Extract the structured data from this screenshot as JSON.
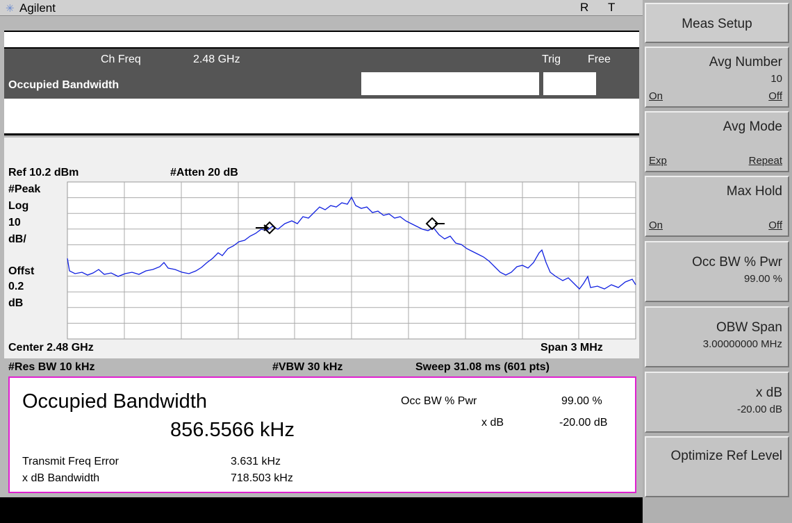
{
  "header": {
    "logo": "Agilent",
    "status": [
      "R",
      "T"
    ]
  },
  "measurement_bar": {
    "ch_freq_label": "Ch Freq",
    "ch_freq_value": "2.48 GHz",
    "trig_label": "Trig",
    "trig_value": "Free",
    "title": "Occupied Bandwidth"
  },
  "graph": {
    "ref": "Ref 10.2 dBm",
    "atten": "#Atten 20 dB",
    "scale_labels": [
      "#Peak",
      "Log",
      "10",
      "dB/",
      "Offst",
      "0.2",
      "dB"
    ],
    "center": "Center 2.48 GHz",
    "span": "Span 3 MHz",
    "res_bw": "#Res BW 10 kHz",
    "vbw": "#VBW 30 kHz",
    "sweep": "Sweep 31.08 ms (601 pts)"
  },
  "results": {
    "title": "Occupied Bandwidth",
    "value": "856.5566 kHz",
    "occ_bw_label": "Occ BW % Pwr",
    "occ_bw_value": "99.00 %",
    "xdb_label": "x dB",
    "xdb_value": "-20.00 dB",
    "rows": [
      [
        "Transmit Freq Error",
        "3.631 kHz"
      ],
      [
        "x dB Bandwidth",
        "718.503 kHz"
      ]
    ]
  },
  "softkeys": {
    "title": "Meas Setup",
    "keys": [
      {
        "label": "Avg Number",
        "value": "10",
        "options": [
          "On",
          "Off"
        ]
      },
      {
        "label": "Avg Mode",
        "options": [
          "Exp",
          "Repeat"
        ]
      },
      {
        "label": "Max Hold",
        "options": [
          "On",
          "Off"
        ]
      },
      {
        "label": "Occ BW % Pwr",
        "value": "99.00 %"
      },
      {
        "label": "OBW Span",
        "value": "3.00000000 MHz"
      },
      {
        "label": "x dB",
        "value": "-20.00 dB"
      },
      {
        "label": "Optimize Ref Level"
      }
    ]
  }
}
